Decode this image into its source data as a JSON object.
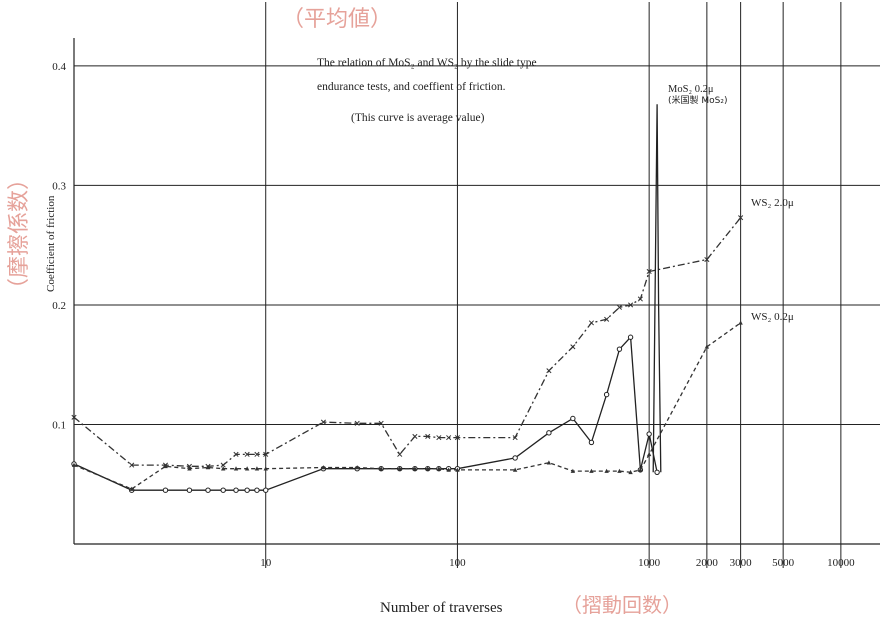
{
  "chart_data": {
    "type": "line",
    "title": {
      "line1": "The relation of MoS₂ and WS₂ by the slide type",
      "line2": "endurance tests, and coeffient of friction.",
      "note": "(This curve is average value)"
    },
    "jp_title": "（平均値）",
    "xlabel": "Number of traverses",
    "xlabel_jp": "（摺動回数）",
    "ylabel": "Coefficient of friction",
    "ylabel_jp": "（摩擦係数）",
    "x_scale": "log",
    "xlim": [
      1.0,
      16000
    ],
    "ylim": [
      0.0,
      0.42
    ],
    "x_ticks": [
      {
        "value": 10,
        "label": "10"
      },
      {
        "value": 100,
        "label": "100"
      },
      {
        "value": 1000,
        "label": "1000"
      },
      {
        "value": 2000,
        "label": "2000"
      },
      {
        "value": 3000,
        "label": "3000"
      },
      {
        "value": 5000,
        "label": "5000"
      },
      {
        "value": 10000,
        "label": "10000"
      }
    ],
    "y_ticks": [
      {
        "value": 0.1,
        "label": "0.1"
      },
      {
        "value": 0.2,
        "label": "0.2"
      },
      {
        "value": 0.3,
        "label": "0.3"
      },
      {
        "value": 0.4,
        "label": "0.4"
      }
    ],
    "grid": true,
    "series": [
      {
        "name": "WS₂ 2.0μ",
        "style": "dash-dot",
        "marker": "x",
        "color": "#333333",
        "x": [
          1,
          2,
          3,
          4,
          5,
          6,
          7,
          8,
          9,
          10,
          20,
          30,
          40,
          50,
          60,
          70,
          80,
          90,
          100,
          200,
          300,
          400,
          500,
          600,
          700,
          800,
          900,
          1000,
          2000,
          3000
        ],
        "values": [
          0.106,
          0.066,
          0.066,
          0.065,
          0.065,
          0.066,
          0.075,
          0.075,
          0.075,
          0.075,
          0.102,
          0.101,
          0.101,
          0.075,
          0.09,
          0.09,
          0.089,
          0.089,
          0.089,
          0.089,
          0.145,
          0.165,
          0.185,
          0.188,
          0.198,
          0.2,
          0.205,
          0.228,
          0.238,
          0.273
        ]
      },
      {
        "name": "",
        "style": "solid",
        "marker": "o",
        "color": "#222222",
        "x": [
          1,
          2,
          3,
          4,
          5,
          6,
          7,
          8,
          9,
          10,
          20,
          30,
          40,
          50,
          60,
          70,
          80,
          90,
          100,
          200,
          300,
          400,
          500,
          600,
          700,
          800,
          900,
          1000,
          1100
        ],
        "values": [
          0.067,
          0.045,
          0.045,
          0.045,
          0.045,
          0.045,
          0.045,
          0.045,
          0.045,
          0.045,
          0.063,
          0.063,
          0.063,
          0.063,
          0.063,
          0.063,
          0.063,
          0.063,
          0.063,
          0.072,
          0.093,
          0.105,
          0.085,
          0.125,
          0.163,
          0.173,
          0.062,
          0.092,
          0.06
        ]
      },
      {
        "name": "WS₂ 0.2μ",
        "style": "dashed",
        "marker": "triangle",
        "color": "#333333",
        "x": [
          1,
          2,
          3,
          4,
          5,
          6,
          7,
          8,
          9,
          10,
          20,
          30,
          40,
          50,
          60,
          70,
          80,
          90,
          100,
          200,
          300,
          400,
          500,
          600,
          700,
          800,
          900,
          1000,
          2000,
          3000
        ],
        "values": [
          0.066,
          0.046,
          0.065,
          0.063,
          0.064,
          0.063,
          0.063,
          0.063,
          0.063,
          0.063,
          0.064,
          0.064,
          0.063,
          0.063,
          0.063,
          0.063,
          0.063,
          0.062,
          0.062,
          0.062,
          0.068,
          0.061,
          0.061,
          0.061,
          0.061,
          0.06,
          0.062,
          0.075,
          0.165,
          0.185
        ]
      },
      {
        "name": "MoS₂ 0.2μ",
        "style": "solid",
        "marker": "none",
        "color": "#222222",
        "x": [
          1050,
          1100,
          1120,
          1150
        ],
        "values": [
          0.06,
          0.368,
          0.2,
          0.06
        ]
      }
    ],
    "annotations": [
      {
        "text": "MoS₂ 0.2μ",
        "sub": "(米国製 MoS₂)",
        "x": 1100,
        "y": 0.368
      },
      {
        "text": "WS₂ 2.0μ",
        "x": 3000,
        "y": 0.273
      },
      {
        "text": "WS₂ 0.2μ",
        "x": 3000,
        "y": 0.185
      }
    ]
  }
}
